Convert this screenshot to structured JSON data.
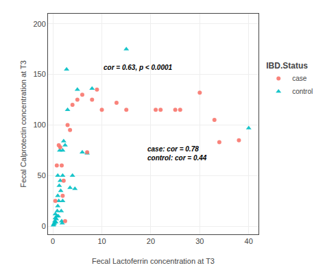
{
  "chart_data": {
    "type": "scatter",
    "x_label": "Fecal Lactoferrin concentration at T3",
    "y_label": "Fecal Calprotectin concentration at T3",
    "legend_title": "IBD.Status",
    "legend": "right",
    "grid": true,
    "xlim": [
      -1,
      42
    ],
    "ylim": [
      -8,
      210
    ],
    "xticks": [
      0,
      10,
      20,
      30,
      40
    ],
    "yticks": [
      0,
      50,
      100,
      150,
      200
    ],
    "annotations": [
      {
        "text": "cor = 0.63, p < 0.0001",
        "x": 10,
        "y": 157
      },
      {
        "text": "case: cor = 0.78\ncontrol: cor = 0.44",
        "x": 19,
        "y": 72
      }
    ],
    "series": [
      {
        "name": "case",
        "color": "#F8766D",
        "marker": "circle",
        "x": [
          0.5,
          0.8,
          1.2,
          1.5,
          1.8,
          2.0,
          2.2,
          2.5,
          3.0,
          3.5,
          4.0,
          5.0,
          6.0,
          7.0,
          8.0,
          9.0,
          10.0,
          13.0,
          15.0,
          21.0,
          22.0,
          25.0,
          26.0,
          30.0,
          33.0,
          34.0,
          38.0
        ],
        "values": [
          25.0,
          60.0,
          80.0,
          78.0,
          60.0,
          30.0,
          45.0,
          5.0,
          100.0,
          95.0,
          120.0,
          125.0,
          130.0,
          73.0,
          125.0,
          135.0,
          115.0,
          122.0,
          115.0,
          115.0,
          115.0,
          115.0,
          115.0,
          132.0,
          105.0,
          83.0,
          85.0
        ]
      },
      {
        "name": "control",
        "color": "#00BFC4",
        "marker": "triangle-up",
        "x": [
          0.1,
          0.2,
          0.3,
          0.4,
          0.5,
          0.5,
          0.6,
          0.7,
          0.8,
          0.9,
          1.0,
          1.0,
          1.0,
          1.1,
          1.2,
          1.3,
          1.4,
          1.5,
          1.6,
          1.7,
          1.8,
          1.9,
          2.0,
          2.0,
          2.0,
          2.2,
          2.5,
          2.8,
          3.0,
          3.5,
          4.0,
          4.5,
          5.0,
          6.0,
          7.0,
          8.0,
          15.0,
          40.0
        ],
        "values": [
          1.0,
          2.0,
          3.0,
          5.0,
          8.0,
          12.0,
          4.0,
          7.0,
          10.0,
          15.0,
          20.0,
          30.0,
          50.0,
          10.0,
          25.0,
          40.0,
          75.0,
          45.0,
          35.0,
          15.0,
          5.0,
          3.0,
          75.0,
          50.0,
          25.0,
          84.0,
          80.0,
          155.0,
          115.0,
          38.0,
          50.0,
          37.0,
          135.0,
          73.0,
          72.0,
          136.0,
          175.0,
          97.0
        ]
      }
    ]
  }
}
